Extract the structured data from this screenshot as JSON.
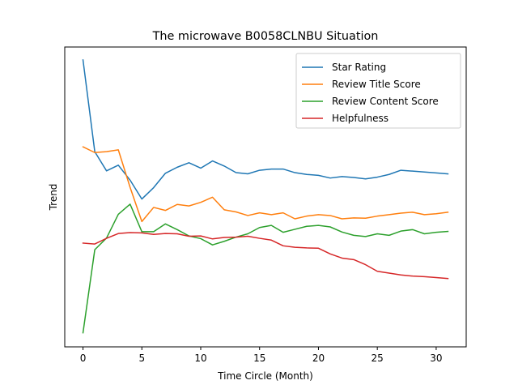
{
  "chart_data": {
    "type": "line",
    "title": "The microwave B0058CLNBU Situation",
    "xlabel": "Time Circle (Month)",
    "ylabel": "Trend",
    "xlim": [
      -1.55,
      32.55
    ],
    "ylim": [
      0.0,
      1.0
    ],
    "yticks_shown": false,
    "xticks": [
      0,
      5,
      10,
      15,
      20,
      25,
      30
    ],
    "grid": false,
    "legend_position": "top-right",
    "x": [
      0,
      1,
      2,
      3,
      4,
      5,
      6,
      7,
      8,
      9,
      10,
      11,
      12,
      13,
      14,
      15,
      16,
      17,
      18,
      19,
      20,
      21,
      22,
      23,
      24,
      25,
      26,
      27,
      28,
      29,
      30,
      31
    ],
    "series": [
      {
        "name": "Star Rating",
        "color": "#1f77b4",
        "values": [
          0.957,
          0.651,
          0.587,
          0.606,
          0.556,
          0.493,
          0.531,
          0.579,
          0.599,
          0.614,
          0.596,
          0.62,
          0.603,
          0.581,
          0.577,
          0.589,
          0.593,
          0.593,
          0.581,
          0.575,
          0.572,
          0.563,
          0.568,
          0.565,
          0.56,
          0.566,
          0.575,
          0.589,
          0.586,
          0.583,
          0.58,
          0.577
        ]
      },
      {
        "name": "Review Title Score",
        "color": "#ff7f0e",
        "values": [
          0.667,
          0.648,
          0.651,
          0.657,
          0.532,
          0.418,
          0.465,
          0.455,
          0.475,
          0.47,
          0.482,
          0.499,
          0.457,
          0.45,
          0.438,
          0.447,
          0.441,
          0.447,
          0.427,
          0.436,
          0.441,
          0.438,
          0.427,
          0.43,
          0.429,
          0.436,
          0.441,
          0.446,
          0.449,
          0.441,
          0.444,
          0.449
        ]
      },
      {
        "name": "Review Content Score",
        "color": "#2ca02c",
        "values": [
          0.047,
          0.324,
          0.363,
          0.442,
          0.476,
          0.384,
          0.384,
          0.41,
          0.391,
          0.37,
          0.361,
          0.34,
          0.352,
          0.366,
          0.377,
          0.398,
          0.405,
          0.382,
          0.392,
          0.402,
          0.405,
          0.4,
          0.383,
          0.372,
          0.368,
          0.377,
          0.372,
          0.386,
          0.391,
          0.377,
          0.382,
          0.385
        ]
      },
      {
        "name": "Helpfulness",
        "color": "#d62728",
        "values": [
          0.346,
          0.343,
          0.362,
          0.378,
          0.381,
          0.38,
          0.375,
          0.378,
          0.377,
          0.369,
          0.37,
          0.36,
          0.365,
          0.366,
          0.369,
          0.362,
          0.356,
          0.337,
          0.332,
          0.33,
          0.329,
          0.31,
          0.296,
          0.291,
          0.274,
          0.252,
          0.246,
          0.24,
          0.236,
          0.234,
          0.231,
          0.228
        ]
      }
    ]
  }
}
